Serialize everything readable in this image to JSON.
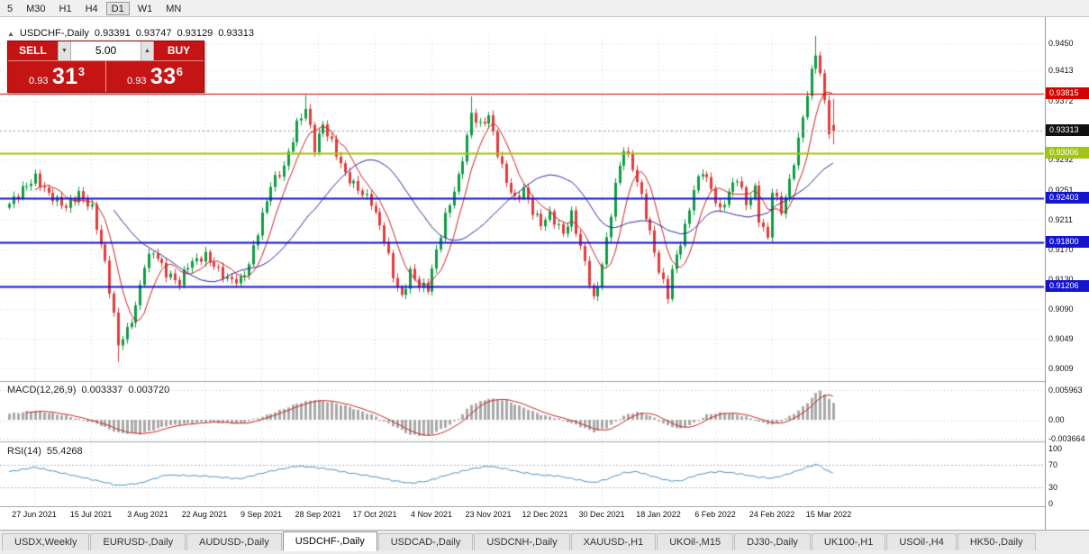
{
  "toolbar": {
    "timeframes": [
      "5",
      "M30",
      "H1",
      "H4",
      "D1",
      "W1",
      "MN"
    ],
    "active": "D1"
  },
  "chart_header": {
    "collapse_icon": "▲",
    "title": "USDCHF-,Daily",
    "open": "0.93391",
    "high": "0.93747",
    "low": "0.93129",
    "close": "0.93313"
  },
  "trade_panel": {
    "sell_label": "SELL",
    "buy_label": "BUY",
    "volume": "5.00",
    "down_arrow": "▼",
    "up_arrow": "▲",
    "sell_price": {
      "small": "0.93",
      "big": "31",
      "sup": "3"
    },
    "buy_price": {
      "small": "0.93",
      "big": "33",
      "sup": "6"
    }
  },
  "indicators": {
    "macd": {
      "name": "MACD(12,26,9)",
      "value": "0.003337",
      "signal": "0.003720"
    },
    "rsi": {
      "name": "RSI(14)",
      "value": "55.4268"
    }
  },
  "axis": {
    "price_labels": [
      "0.9450",
      "0.9413",
      "0.9372",
      "0.9331",
      "0.9292",
      "0.9251",
      "0.9211",
      "0.9170",
      "0.9130",
      "0.9090",
      "0.9049",
      "0.9009"
    ],
    "macd_labels": [
      "0.005963",
      "0.00",
      "-0.003664"
    ],
    "rsi_labels": [
      "100",
      "70",
      "30",
      "0"
    ],
    "date_labels": [
      "27 Jun 2021",
      "15 Jul 2021",
      "3 Aug 2021",
      "22 Aug 2021",
      "9 Sep 2021",
      "28 Sep 2021",
      "17 Oct 2021",
      "4 Nov 2021",
      "23 Nov 2021",
      "12 Dec 2021",
      "30 Dec 2021",
      "18 Jan 2022",
      "6 Feb 2022",
      "24 Feb 2022",
      "15 Mar 2022"
    ]
  },
  "price_markers": [
    {
      "text": "0.93815",
      "price": 0.93815,
      "bg": "#d40000"
    },
    {
      "text": "0.93313",
      "price": 0.93313,
      "bg": "#111111"
    },
    {
      "text": "0.93006",
      "price": 0.93006,
      "bg": "#a2c414"
    },
    {
      "text": "0.92403",
      "price": 0.92403,
      "bg": "#1414cd"
    },
    {
      "text": "0.91800",
      "price": 0.918,
      "bg": "#1414cd"
    },
    {
      "text": "0.91206",
      "price": 0.91206,
      "bg": "#1414cd"
    }
  ],
  "tabs": {
    "items": [
      "USDX,Weekly",
      "EURUSD-,Daily",
      "AUDUSD-,Daily",
      "USDCHF-,Daily",
      "USDCAD-,Daily",
      "USDCNH-,Daily",
      "XAUUSD-,H1",
      "UKOil-,M15",
      "DJ30-,Daily",
      "UK100-,H1",
      "USOil-,H4",
      "HK50-,Daily"
    ],
    "active_index": 3
  },
  "chart_data": [
    {
      "type": "candlestick",
      "title": "USDCHF- Daily",
      "bars": 190,
      "ylim": [
        0.89944,
        0.94586
      ],
      "up_color": "#0f9d44",
      "down_color": "#e23b3b",
      "zigzag": 0.00055,
      "wick": 0.0009,
      "close_waypoints": [
        [
          0,
          0.9232
        ],
        [
          3,
          0.9252
        ],
        [
          6,
          0.9268
        ],
        [
          9,
          0.9245
        ],
        [
          13,
          0.9228
        ],
        [
          16,
          0.9246
        ],
        [
          19,
          0.9226
        ],
        [
          22,
          0.9152
        ],
        [
          24,
          0.908
        ],
        [
          25,
          0.9042
        ],
        [
          27,
          0.906
        ],
        [
          29,
          0.9092
        ],
        [
          31,
          0.915
        ],
        [
          33,
          0.9168
        ],
        [
          36,
          0.9138
        ],
        [
          39,
          0.9125
        ],
        [
          41,
          0.915
        ],
        [
          45,
          0.9162
        ],
        [
          48,
          0.9142
        ],
        [
          50,
          0.913
        ],
        [
          53,
          0.9128
        ],
        [
          55,
          0.915
        ],
        [
          57,
          0.9195
        ],
        [
          60,
          0.9258
        ],
        [
          63,
          0.9282
        ],
        [
          66,
          0.934
        ],
        [
          68,
          0.9362
        ],
        [
          70,
          0.9308
        ],
        [
          72,
          0.934
        ],
        [
          74,
          0.9315
        ],
        [
          77,
          0.9272
        ],
        [
          80,
          0.9252
        ],
        [
          83,
          0.9235
        ],
        [
          86,
          0.9185
        ],
        [
          88,
          0.9135
        ],
        [
          90,
          0.9105
        ],
        [
          92,
          0.914
        ],
        [
          94,
          0.9122
        ],
        [
          96,
          0.9118
        ],
        [
          98,
          0.9168
        ],
        [
          100,
          0.9215
        ],
        [
          103,
          0.9268
        ],
        [
          105,
          0.9322
        ],
        [
          106,
          0.9355
        ],
        [
          108,
          0.9338
        ],
        [
          110,
          0.9352
        ],
        [
          112,
          0.9302
        ],
        [
          114,
          0.9262
        ],
        [
          116,
          0.9238
        ],
        [
          118,
          0.9252
        ],
        [
          120,
          0.9222
        ],
        [
          122,
          0.9205
        ],
        [
          124,
          0.9218
        ],
        [
          127,
          0.9192
        ],
        [
          129,
          0.9218
        ],
        [
          132,
          0.9152
        ],
        [
          134,
          0.9102
        ],
        [
          135,
          0.9122
        ],
        [
          137,
          0.9182
        ],
        [
          139,
          0.9258
        ],
        [
          141,
          0.9308
        ],
        [
          143,
          0.9282
        ],
        [
          145,
          0.9242
        ],
        [
          147,
          0.9192
        ],
        [
          149,
          0.9142
        ],
        [
          151,
          0.9108
        ],
        [
          152,
          0.9142
        ],
        [
          155,
          0.92
        ],
        [
          157,
          0.9252
        ],
        [
          159,
          0.9278
        ],
        [
          161,
          0.9252
        ],
        [
          163,
          0.9222
        ],
        [
          165,
          0.9248
        ],
        [
          167,
          0.9268
        ],
        [
          169,
          0.9232
        ],
        [
          171,
          0.9252
        ],
        [
          172,
          0.9212
        ],
        [
          174,
          0.9185
        ],
        [
          175,
          0.9252
        ],
        [
          177,
          0.9222
        ],
        [
          179,
          0.9262
        ],
        [
          181,
          0.9318
        ],
        [
          183,
          0.9382
        ],
        [
          185,
          0.9438
        ],
        [
          186,
          0.9408
        ],
        [
          188,
          0.9332
        ],
        [
          189,
          0.9331
        ]
      ],
      "overrides": {
        "25": {
          "low": 0.9018
        },
        "68": {
          "high": 0.938
        },
        "106": {
          "high": 0.9378
        },
        "185": {
          "high": 0.946
        }
      },
      "last_bar": {
        "open": 0.93391,
        "high": 0.93747,
        "low": 0.93129,
        "close": 0.93313
      },
      "moving_averages": [
        {
          "period": 7,
          "color": "#cc2222"
        },
        {
          "period": 25,
          "color": "#2a2a9a"
        }
      ],
      "hlines": [
        {
          "price": 0.93815,
          "color": "#d40000",
          "width": 1
        },
        {
          "price": 0.93006,
          "color": "#a2c414",
          "width": 2
        },
        {
          "price": 0.92403,
          "color": "#1414cd",
          "width": 2
        },
        {
          "price": 0.918,
          "color": "#1414cd",
          "width": 2
        },
        {
          "price": 0.91206,
          "color": "#1414cd",
          "width": 2
        }
      ],
      "grid_prices": [
        0.945,
        0.9413,
        0.9372,
        0.9331,
        0.9292,
        0.9251,
        0.9211,
        0.917,
        0.913,
        0.909,
        0.9049,
        0.9009
      ],
      "current_price": 0.93313
    },
    {
      "type": "macd",
      "params": "12,26,9",
      "value": 0.003337,
      "signal_value": 0.00372,
      "ylim": [
        -0.003664,
        0.005963
      ],
      "hist_color": "#a9a9a9",
      "signal_color": "#cc2222",
      "signal_period": 5,
      "waypoints": [
        [
          0,
          0.0012
        ],
        [
          6,
          0.0018
        ],
        [
          13,
          0.0008
        ],
        [
          20,
          -0.0008
        ],
        [
          25,
          -0.0026
        ],
        [
          30,
          -0.0028
        ],
        [
          36,
          -0.0012
        ],
        [
          45,
          -0.0004
        ],
        [
          53,
          -0.0008
        ],
        [
          60,
          0.0012
        ],
        [
          66,
          0.0032
        ],
        [
          70,
          0.004
        ],
        [
          74,
          0.0034
        ],
        [
          77,
          0.0028
        ],
        [
          83,
          0.001
        ],
        [
          88,
          -0.0012
        ],
        [
          92,
          -0.003
        ],
        [
          96,
          -0.0032
        ],
        [
          100,
          -0.0015
        ],
        [
          103,
          0.0002
        ],
        [
          106,
          0.003
        ],
        [
          110,
          0.0042
        ],
        [
          114,
          0.0038
        ],
        [
          118,
          0.0024
        ],
        [
          122,
          0.001
        ],
        [
          126,
          0.0002
        ],
        [
          130,
          -0.001
        ],
        [
          134,
          -0.0024
        ],
        [
          137,
          -0.0016
        ],
        [
          139,
          -0.0004
        ],
        [
          141,
          0.0008
        ],
        [
          144,
          0.0016
        ],
        [
          147,
          0.0008
        ],
        [
          151,
          -0.0012
        ],
        [
          154,
          -0.0018
        ],
        [
          157,
          -0.0006
        ],
        [
          160,
          0.001
        ],
        [
          163,
          0.0014
        ],
        [
          166,
          0.0012
        ],
        [
          169,
          0.0006
        ],
        [
          172,
          -0.0004
        ],
        [
          175,
          -0.001
        ],
        [
          178,
          0.0002
        ],
        [
          181,
          0.0018
        ],
        [
          183,
          0.0034
        ],
        [
          185,
          0.0052
        ],
        [
          186,
          0.0059
        ],
        [
          187,
          0.005
        ],
        [
          188,
          0.004
        ],
        [
          189,
          0.0033
        ]
      ]
    },
    {
      "type": "rsi",
      "period": 14,
      "value": 55.4268,
      "ylim": [
        0,
        100
      ],
      "levels": [
        70,
        30
      ],
      "color": "#4a90c8",
      "waypoints": [
        [
          0,
          58
        ],
        [
          6,
          66
        ],
        [
          13,
          54
        ],
        [
          20,
          42
        ],
        [
          25,
          33
        ],
        [
          30,
          37
        ],
        [
          36,
          52
        ],
        [
          45,
          50
        ],
        [
          53,
          45
        ],
        [
          60,
          59
        ],
        [
          66,
          68
        ],
        [
          70,
          66
        ],
        [
          74,
          62
        ],
        [
          77,
          57
        ],
        [
          83,
          50
        ],
        [
          88,
          42
        ],
        [
          92,
          37
        ],
        [
          96,
          41
        ],
        [
          100,
          51
        ],
        [
          106,
          63
        ],
        [
          110,
          68
        ],
        [
          114,
          63
        ],
        [
          118,
          56
        ],
        [
          122,
          52
        ],
        [
          126,
          50
        ],
        [
          130,
          44
        ],
        [
          134,
          38
        ],
        [
          137,
          44
        ],
        [
          141,
          56
        ],
        [
          144,
          58
        ],
        [
          147,
          51
        ],
        [
          151,
          42
        ],
        [
          154,
          41
        ],
        [
          157,
          50
        ],
        [
          160,
          56
        ],
        [
          163,
          58
        ],
        [
          166,
          56
        ],
        [
          169,
          52
        ],
        [
          172,
          48
        ],
        [
          175,
          46
        ],
        [
          178,
          52
        ],
        [
          181,
          60
        ],
        [
          183,
          66
        ],
        [
          185,
          71
        ],
        [
          186,
          69
        ],
        [
          187,
          63
        ],
        [
          188,
          58
        ],
        [
          189,
          55.4
        ]
      ]
    }
  ]
}
